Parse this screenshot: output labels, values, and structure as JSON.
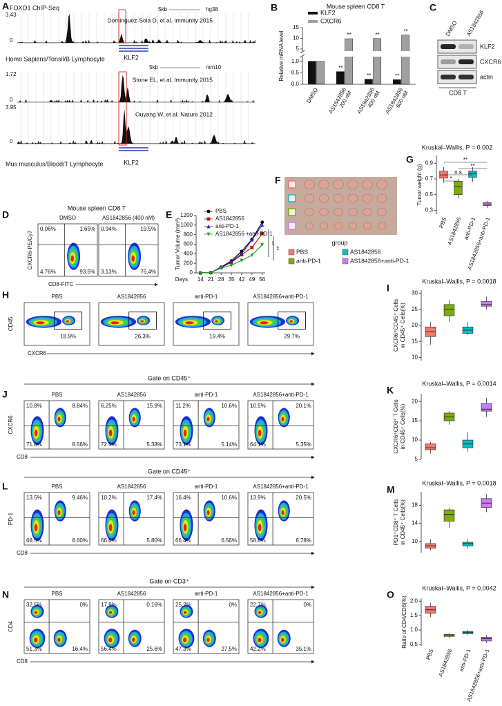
{
  "chart_data": [
    {
      "type": "bar",
      "label": "B",
      "title": "Mouse spleen CD8 T",
      "ylabel": [
        "Relative mRNA level"
      ],
      "categories": [
        [
          "DMSO"
        ],
        [
          "AS1842856",
          "200 nM"
        ],
        [
          "AS1842856",
          "400 nM"
        ],
        [
          "AS1842856",
          "600 nM"
        ]
      ],
      "series": [
        {
          "name": "KLF2",
          "color": "#111111",
          "values": [
            1.0,
            0.55,
            0.22,
            0.2
          ],
          "annotations": [
            null,
            "**",
            "**",
            "**"
          ]
        },
        {
          "name": "CXCR6",
          "color": "#a0a0a0",
          "values": [
            1.0,
            9.8,
            9.9,
            11.5
          ],
          "annotations": [
            null,
            "**",
            "**",
            "**"
          ]
        }
      ],
      "ylim": [
        0,
        15
      ],
      "ybreak": [
        1.2,
        4
      ],
      "yticks": [
        {
          "value": 0,
          "label": "0.0"
        },
        0.5,
        {
          "value": 1,
          "label": "1.0"
        },
        5,
        10,
        15
      ]
    },
    {
      "type": "line",
      "label": "E",
      "ylabel": [
        "Tumor Volume (mm³)"
      ],
      "xlabel": "Days",
      "x": [
        14,
        21,
        28,
        35,
        42,
        49,
        56
      ],
      "xlim": [
        11,
        58
      ],
      "xticks": [
        14,
        21,
        28,
        35,
        42,
        49,
        56
      ],
      "ylim": [
        0,
        1200
      ],
      "yticks": [
        0,
        200,
        400,
        600,
        800,
        1000,
        1200
      ],
      "series": [
        {
          "name": "PBS",
          "color": "#000000",
          "marker": "circle",
          "values": [
            0,
            5,
            120,
            250,
            450,
            700,
            1060
          ]
        },
        {
          "name": "AS1842856",
          "color": "#d01010",
          "marker": "square",
          "values": [
            0,
            5,
            110,
            220,
            380,
            530,
            820
          ]
        },
        {
          "name": "anti-PD-1",
          "color": "#2020c0",
          "marker": "triangle",
          "values": [
            0,
            5,
            115,
            230,
            400,
            690,
            1000
          ]
        },
        {
          "name": "AS1842856 +anti-PD-1",
          "color": "#20a020",
          "marker": "triangle-down",
          "values": [
            0,
            5,
            100,
            160,
            260,
            370,
            590
          ]
        }
      ],
      "annotations": [
        "**",
        "**"
      ]
    },
    {
      "type": "box",
      "label": "G",
      "title": "Kruskal–Wallis, P = 0.002",
      "ylabel": [
        "Tumor weight (g)"
      ],
      "categories": [
        "PBS",
        "AS1842856",
        "anti-PD-1",
        "AS1842856+anti-PD-1"
      ],
      "ylim": [
        0.25,
        1.0
      ],
      "yticks": [
        0.3,
        0.5,
        0.7,
        0.9
      ],
      "boxes": [
        {
          "color": "#f8766d",
          "min": 0.65,
          "q1": 0.71,
          "median": 0.75,
          "q3": 0.8,
          "max": 0.85
        },
        {
          "color": "#7cae00",
          "min": 0.45,
          "q1": 0.5,
          "median": 0.6,
          "q3": 0.67,
          "max": 0.7
        },
        {
          "color": "#00bfc4",
          "min": 0.66,
          "q1": 0.72,
          "median": 0.77,
          "q3": 0.8,
          "max": 0.85
        },
        {
          "color": "#c77cff",
          "min": 0.33,
          "q1": 0.36,
          "median": 0.38,
          "q3": 0.4,
          "max": 0.42
        }
      ],
      "significance": [
        "*",
        "n.s",
        "**",
        "**"
      ]
    },
    {
      "type": "box",
      "label": "I",
      "title": "Kruskal–Wallis, P = 0.0018",
      "ylabel": [
        "CXCR6⁺CD45⁺ Cells",
        "in CD45⁺ Cells(%)"
      ],
      "ylim": [
        9,
        31
      ],
      "yticks": [
        10,
        15,
        20,
        25,
        30
      ],
      "boxes": [
        {
          "color": "#f8766d",
          "min": 14,
          "q1": 16.5,
          "median": 18,
          "q3": 19.5,
          "max": 21
        },
        {
          "color": "#7cae00",
          "min": 21,
          "q1": 23,
          "median": 25,
          "q3": 26.5,
          "max": 28
        },
        {
          "color": "#00bfc4",
          "min": 17,
          "q1": 17.5,
          "median": 18.5,
          "q3": 19.5,
          "max": 21
        },
        {
          "color": "#c77cff",
          "min": 25,
          "q1": 26,
          "median": 26.5,
          "q3": 27.5,
          "max": 29
        }
      ]
    },
    {
      "type": "box",
      "label": "K",
      "title": "Kruskal–Wallis, P = 0.0014",
      "ylabel": [
        "CXCR6⁺CD8⁺ T Cells",
        "in CD45⁺ Cells(%)"
      ],
      "ylim": [
        5,
        22
      ],
      "yticks": [
        5,
        10,
        15,
        20
      ],
      "boxes": [
        {
          "color": "#f8766d",
          "min": 6.5,
          "q1": 7.5,
          "median": 8,
          "q3": 9,
          "max": 9.5
        },
        {
          "color": "#7cae00",
          "min": 14,
          "q1": 15,
          "median": 16,
          "q3": 17,
          "max": 17.5
        },
        {
          "color": "#00bfc4",
          "min": 7,
          "q1": 8,
          "median": 9,
          "q3": 10,
          "max": 12
        },
        {
          "color": "#c77cff",
          "min": 16,
          "q1": 17.5,
          "median": 18,
          "q3": 19.5,
          "max": 21
        }
      ]
    },
    {
      "type": "box",
      "label": "M",
      "title": "Kruskal–Wallis, P = 0.0018",
      "ylabel": [
        "PD1⁺CD8⁺ T Cells",
        "in CD45⁺ Cells(%)"
      ],
      "ylim": [
        7.5,
        21
      ],
      "yticks": [
        10,
        14,
        18
      ],
      "boxes": [
        {
          "color": "#f8766d",
          "min": 8,
          "q1": 8.5,
          "median": 9,
          "q3": 9.5,
          "max": 10.5
        },
        {
          "color": "#7cae00",
          "min": 13,
          "q1": 14.5,
          "median": 16,
          "q3": 17,
          "max": 17.5
        },
        {
          "color": "#00bfc4",
          "min": 8.5,
          "q1": 9,
          "median": 9.5,
          "q3": 9.8,
          "max": 10.5
        },
        {
          "color": "#c77cff",
          "min": 16.5,
          "q1": 17.5,
          "median": 18.5,
          "q3": 19.5,
          "max": 20.5
        }
      ]
    },
    {
      "type": "box",
      "label": "O",
      "title": "Kruskal–Wallis, P = 0.0042",
      "ylabel": [
        "Ratio of CD4/CD8(%)"
      ],
      "categories": [
        "PBS",
        "AS1842856",
        "anti-PD-1",
        "AS1842856+anti-PD-1"
      ],
      "ylim": [
        0.45,
        2.1
      ],
      "yticks": [
        0.5,
        {
          "value": 1,
          "label": "1.0"
        },
        1.5,
        {
          "value": 2,
          "label": "2.0"
        }
      ],
      "boxes": [
        {
          "color": "#f8766d",
          "min": 1.45,
          "q1": 1.58,
          "median": 1.7,
          "q3": 1.82,
          "max": 1.95
        },
        {
          "color": "#7cae00",
          "min": 0.72,
          "q1": 0.78,
          "median": 0.8,
          "q3": 0.85,
          "max": 0.88
        },
        {
          "color": "#00bfc4",
          "min": 0.82,
          "q1": 0.87,
          "median": 0.92,
          "q3": 0.95,
          "max": 1.0
        },
        {
          "color": "#c77cff",
          "min": 0.55,
          "q1": 0.62,
          "median": 0.7,
          "q3": 0.75,
          "max": 0.82
        }
      ]
    }
  ],
  "figures": {
    "A": {
      "label": "A",
      "title": "FOXO1 ChIP-Seq",
      "tracks": [
        {
          "max": 3.43,
          "min": 0,
          "citation": "Dominguez-Sola D, et al. Immunity 2015"
        },
        {
          "max": 1.72,
          "min": 0,
          "citation": "Stone EL, et al. Immunity 2015"
        },
        {
          "max": 3.95,
          "min": 0,
          "citation": "Ouyang W, et al. Nature 2012"
        }
      ],
      "scales": [
        {
          "bar": "5kb",
          "genome": "hg38"
        },
        {
          "bar": "5kb",
          "genome": "mm10"
        }
      ],
      "sources": [
        {
          "text": "Homo Sapiens/Tonsil/B Lymphocyte",
          "gene": "KLF2"
        },
        {
          "text": "Mus musculus/Blood/T Lymphocyte",
          "gene": "KLF2"
        }
      ]
    },
    "C": {
      "label": "C",
      "lanes": [
        "DMSO",
        "AS1842856"
      ],
      "proteins": [
        "KLF2",
        "CXCR6",
        "actin"
      ],
      "cell": "CD8 T"
    },
    "D": {
      "label": "D",
      "title": "Mouse spleen CD8 T",
      "y_axis": "CXCR6-PE/Cy7",
      "x_axis": "CD8-FITC",
      "plots": [
        {
          "title": "DMSO",
          "quadrants": [
            "0.06%",
            "1.65%",
            "4.76%",
            "93.5%"
          ]
        },
        {
          "title": "AS1842856 (400 nM)",
          "quadrants": [
            "0.94%",
            "19.5%",
            "3.13%",
            "76.4%"
          ]
        }
      ]
    },
    "F": {
      "label": "F",
      "legend_title": "group",
      "groups": [
        {
          "name": "PBS",
          "color": "#f8766d"
        },
        {
          "name": "AS1842856",
          "color": "#00bfc4"
        },
        {
          "name": "anti-PD-1",
          "color": "#7cae00"
        },
        {
          "name": "AS1842856+anti-PD-1",
          "color": "#c77cff"
        }
      ]
    },
    "H": {
      "label": "H",
      "y_axis": "CD45",
      "x_axis": "CXCR6",
      "plots": [
        {
          "title": "PBS",
          "gate": "18.9%"
        },
        {
          "title": "AS1842856",
          "gate": "26.3%"
        },
        {
          "title": "anti-PD-1",
          "gate": "19.4%"
        },
        {
          "title": "AS1842856+anti-PD-1",
          "gate": "29.7%"
        }
      ]
    },
    "J": {
      "label": "J",
      "gate_label": "Gate on CD45⁺",
      "y_axis": "CXCR6",
      "x_axis": "CD8",
      "plots": [
        {
          "title": "PBS",
          "quadrants": [
            "10.8%",
            "8.84%",
            "71.8%",
            "8.56%"
          ]
        },
        {
          "title": "AS1842856",
          "quadrants": [
            "6.25%",
            "15.9%",
            "72.5%",
            "5.38%"
          ]
        },
        {
          "title": "anti-PD-1",
          "quadrants": [
            "11.2%",
            "10.6%",
            "73.1%",
            "5.14%"
          ]
        },
        {
          "title": "AS1842856+anti-PD-1",
          "quadrants": [
            "10.5%",
            "20.1%",
            "64.1%",
            "5.35%"
          ]
        }
      ]
    },
    "L": {
      "label": "L",
      "gate_label": "Gate on CD45⁺",
      "y_axis": "PD-1",
      "x_axis": "CD8",
      "plots": [
        {
          "title": "PBS",
          "quadrants": [
            "13.5%",
            "9.46%",
            "68.5%",
            "8.60%"
          ]
        },
        {
          "title": "AS1842856",
          "quadrants": [
            "10.2%",
            "17.4%",
            "66.6%",
            "5.80%"
          ]
        },
        {
          "title": "anti-PD-1",
          "quadrants": [
            "16.4%",
            "10.6%",
            "66.4%",
            "6.56%"
          ]
        },
        {
          "title": "AS1842856+anti-PD-1",
          "quadrants": [
            "13.9%",
            "20.5%",
            "58.8%",
            "6.78%"
          ]
        }
      ]
    },
    "N": {
      "label": "N",
      "gate_label": "Gate on CD3⁺",
      "y_axis": "CD4",
      "x_axis": "CD8",
      "plots": [
        {
          "title": "PBS",
          "quadrants": [
            "32.5%",
            "0%",
            "51.3%",
            "16.4%"
          ]
        },
        {
          "title": "AS1842856",
          "quadrants": [
            "17.9%",
            "0.16%",
            "56.4%",
            "25.6%"
          ]
        },
        {
          "title": "anti-PD-1",
          "quadrants": [
            "25.2%",
            "0%",
            "47.3%",
            "27.5%"
          ]
        },
        {
          "title": "AS1842856+anti-PD-1",
          "quadrants": [
            "22.7%",
            "0%",
            "42.2%",
            "35.1%"
          ]
        }
      ]
    }
  }
}
